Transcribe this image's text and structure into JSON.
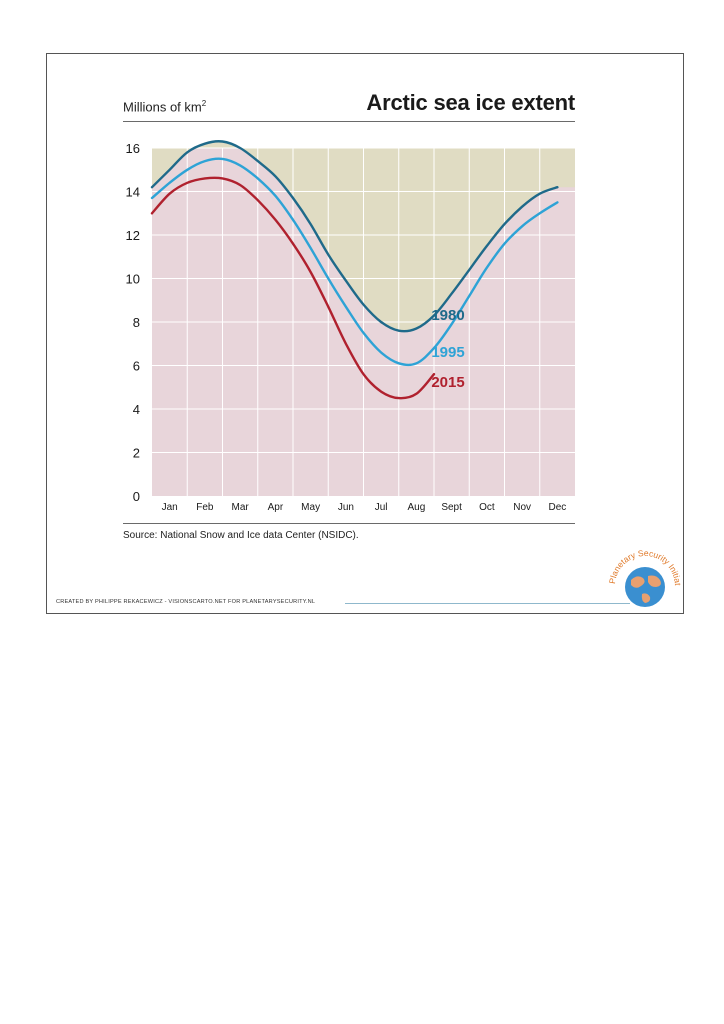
{
  "chart_data": {
    "type": "line",
    "title": "Arctic sea ice extent",
    "ylabel": "Millions of km",
    "ylabel_superscript": "2",
    "xlabel": "",
    "ylim": [
      0,
      16
    ],
    "yticks": [
      0,
      2,
      4,
      6,
      8,
      10,
      12,
      14,
      16
    ],
    "categories": [
      "Jan",
      "Feb",
      "Mar",
      "Apr",
      "May",
      "Jun",
      "Jul",
      "Aug",
      "Sept",
      "Oct",
      "Nov",
      "Dec"
    ],
    "grid": true,
    "series": [
      {
        "name": "1980",
        "color": "#1f6a8a",
        "x": [
          0,
          0.5,
          1,
          1.5,
          2,
          2.5,
          3,
          3.5,
          4,
          4.5,
          5,
          5.5,
          6,
          6.5,
          7,
          7.5,
          8,
          8.5,
          9,
          9.5,
          10,
          10.5,
          11,
          11.5
        ],
        "values": [
          14.2,
          15.0,
          15.8,
          16.2,
          16.3,
          16.0,
          15.4,
          14.7,
          13.7,
          12.5,
          11.1,
          9.9,
          8.8,
          8.0,
          7.6,
          7.7,
          8.3,
          9.3,
          10.4,
          11.5,
          12.5,
          13.3,
          13.9,
          14.2
        ]
      },
      {
        "name": "1995",
        "color": "#2ea3d6",
        "x": [
          0,
          0.5,
          1,
          1.5,
          2,
          2.5,
          3,
          3.5,
          4,
          4.5,
          5,
          5.5,
          6,
          6.5,
          7,
          7.5,
          8,
          8.5,
          9,
          9.5,
          10,
          10.5,
          11,
          11.5
        ],
        "values": [
          13.7,
          14.4,
          15.0,
          15.4,
          15.5,
          15.2,
          14.6,
          13.8,
          12.7,
          11.4,
          10.0,
          8.7,
          7.5,
          6.6,
          6.1,
          6.1,
          6.8,
          7.9,
          9.2,
          10.5,
          11.6,
          12.4,
          13.0,
          13.5
        ]
      },
      {
        "name": "2015",
        "color": "#b0212e",
        "x": [
          0,
          0.5,
          1,
          1.5,
          2,
          2.5,
          3,
          3.5,
          4,
          4.5,
          5,
          5.5,
          6,
          6.5,
          7,
          7.5,
          8
        ],
        "values": [
          13.0,
          13.9,
          14.4,
          14.6,
          14.6,
          14.3,
          13.6,
          12.7,
          11.6,
          10.3,
          8.7,
          7.0,
          5.6,
          4.8,
          4.5,
          4.7,
          5.6
        ]
      }
    ],
    "annotations": [
      "1980",
      "1995",
      "2015"
    ]
  },
  "source": "Source: National Snow and Ice data Center (NSIDC).",
  "credit": "CREATED BY PHILIPPE REKACEWICZ - VISIONSCARTO.NET FOR PLANETARYSECURITY.NL",
  "logo": {
    "text": "Planetary Security Initiative",
    "colors": {
      "ring_text": "#e07a2a",
      "globe": "#3a8fd0",
      "land": "#e8a070"
    }
  },
  "colors": {
    "above_band": "#e0dcc3",
    "below_band": "#e8d5da",
    "grid": "#ffffff",
    "axis_text": "#1a1a1a"
  }
}
